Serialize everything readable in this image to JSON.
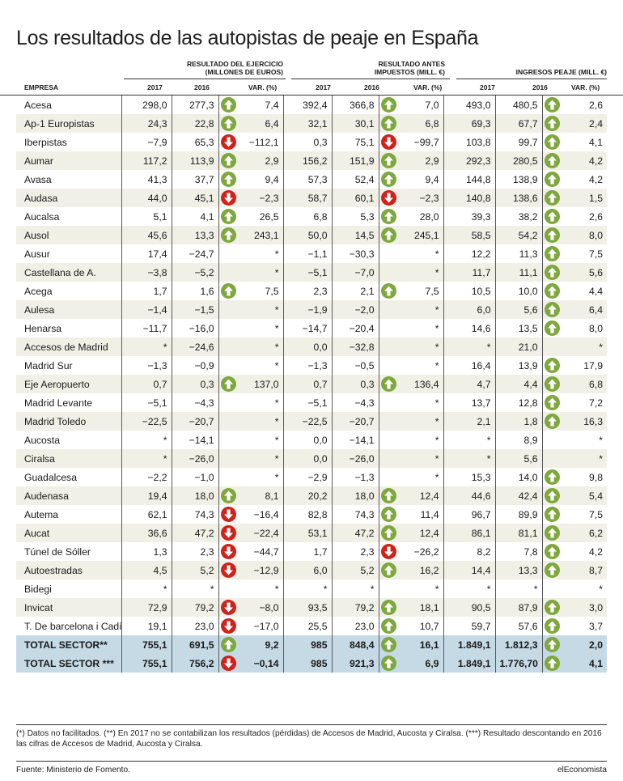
{
  "title": "Los resultados de las autopistas de peaje en España",
  "groups": [
    {
      "l1": "RESULTADO DEL EJERCICIO",
      "l2": "(MILLONES DE EUROS)"
    },
    {
      "l1": "RESULTADO ANTES",
      "l2": "IMPUESTOS (MILL. €)"
    },
    {
      "l1": "",
      "l2": "INGRESOS PEAJE (MILL. €)"
    }
  ],
  "columns": [
    "EMPRESA",
    "2017",
    "2016",
    "VAR. (%)",
    "2017",
    "2016",
    "VAR. (%)",
    "2017",
    "2016",
    "VAR. (%)"
  ],
  "rows": [
    {
      "name": "Acesa",
      "v": [
        "298,0",
        "277,3",
        "7,4",
        "392,4",
        "366,8",
        "7,0",
        "493,0",
        "480,5",
        "2,6"
      ],
      "a": [
        "up",
        "up",
        "up"
      ]
    },
    {
      "name": "Ap-1 Europistas",
      "v": [
        "24,3",
        "22,8",
        "6,4",
        "32,1",
        "30,1",
        "6,8",
        "69,3",
        "67,7",
        "2,4"
      ],
      "a": [
        "up",
        "up",
        "up"
      ]
    },
    {
      "name": "Iberpistas",
      "v": [
        "−7,9",
        "65,3",
        "−112,1",
        "0,3",
        "75,1",
        "−99,7",
        "103,8",
        "99,7",
        "4,1"
      ],
      "a": [
        "down",
        "down",
        "up"
      ]
    },
    {
      "name": "Aumar",
      "v": [
        "117,2",
        "113,9",
        "2,9",
        "156,2",
        "151,9",
        "2,9",
        "292,3",
        "280,5",
        "4,2"
      ],
      "a": [
        "up",
        "up",
        "up"
      ]
    },
    {
      "name": "Avasa",
      "v": [
        "41,3",
        "37,7",
        "9,4",
        "57,3",
        "52,4",
        "9,4",
        "144,8",
        "138,9",
        "4,2"
      ],
      "a": [
        "up",
        "up",
        "up"
      ]
    },
    {
      "name": "Audasa",
      "v": [
        "44,0",
        "45,1",
        "−2,3",
        "58,7",
        "60,1",
        "−2,3",
        "140,8",
        "138,6",
        "1,5"
      ],
      "a": [
        "down",
        "down",
        "up"
      ]
    },
    {
      "name": "Aucalsa",
      "v": [
        "5,1",
        "4,1",
        "26,5",
        "6,8",
        "5,3",
        "28,0",
        "39,3",
        "38,2",
        "2,6"
      ],
      "a": [
        "up",
        "up",
        "up"
      ]
    },
    {
      "name": "Ausol",
      "v": [
        "45,6",
        "13,3",
        "243,1",
        "50,0",
        "14,5",
        "245,1",
        "58,5",
        "54,2",
        "8,0"
      ],
      "a": [
        "up",
        "up",
        "up"
      ]
    },
    {
      "name": "Ausur",
      "v": [
        "17,4",
        "−24,7",
        "*",
        "−1,1",
        "−30,3",
        "*",
        "12,2",
        "11,3",
        "7,5"
      ],
      "a": [
        "",
        "",
        "up"
      ]
    },
    {
      "name": "Castellana de A.",
      "v": [
        "−3,8",
        "−5,2",
        "*",
        "−5,1",
        "−7,0",
        "*",
        "11,7",
        "11,1",
        "5,6"
      ],
      "a": [
        "",
        "",
        "up"
      ]
    },
    {
      "name": "Acega",
      "v": [
        "1,7",
        "1,6",
        "7,5",
        "2,3",
        "2,1",
        "7,5",
        "10,5",
        "10,0",
        "4,4"
      ],
      "a": [
        "up",
        "up",
        "up"
      ]
    },
    {
      "name": "Aulesa",
      "v": [
        "−1,4",
        "−1,5",
        "*",
        "−1,9",
        "−2,0",
        "*",
        "6,0",
        "5,6",
        "6,4"
      ],
      "a": [
        "",
        "",
        "up"
      ]
    },
    {
      "name": "Henarsa",
      "v": [
        "−11,7",
        "−16,0",
        "*",
        "−14,7",
        "−20,4",
        "*",
        "14,6",
        "13,5",
        "8,0"
      ],
      "a": [
        "",
        "",
        "up"
      ]
    },
    {
      "name": "Accesos de Madrid",
      "v": [
        "*",
        "−24,6",
        "*",
        "0,0",
        "−32,8",
        "*",
        "*",
        "21,0",
        "*"
      ],
      "a": [
        "",
        "",
        ""
      ]
    },
    {
      "name": "Madrid Sur",
      "v": [
        "−1,3",
        "−0,9",
        "*",
        "−1,3",
        "−0,5",
        "*",
        "16,4",
        "13,9",
        "17,9"
      ],
      "a": [
        "",
        "",
        "up"
      ]
    },
    {
      "name": "Eje Aeropuerto",
      "v": [
        "0,7",
        "0,3",
        "137,0",
        "0,7",
        "0,3",
        "136,4",
        "4,7",
        "4,4",
        "6,8"
      ],
      "a": [
        "up",
        "up",
        "up"
      ]
    },
    {
      "name": "Madrid Levante",
      "v": [
        "−5,1",
        "−4,3",
        "*",
        "−5,1",
        "−4,3",
        "*",
        "13,7",
        "12,8",
        "7,2"
      ],
      "a": [
        "",
        "",
        "up"
      ]
    },
    {
      "name": "Madrid Toledo",
      "v": [
        "−22,5",
        "−20,7",
        "*",
        "−22,5",
        "−20,7",
        "*",
        "2,1",
        "1,8",
        "16,3"
      ],
      "a": [
        "",
        "",
        "up"
      ]
    },
    {
      "name": "Aucosta",
      "v": [
        "*",
        "−14,1",
        "*",
        "0,0",
        "−14,1",
        "*",
        "*",
        "8,9",
        "*"
      ],
      "a": [
        "",
        "",
        ""
      ]
    },
    {
      "name": "Ciralsa",
      "v": [
        "*",
        "−26,0",
        "*",
        "0,0",
        "−26,0",
        "*",
        "*",
        "5,6",
        "*"
      ],
      "a": [
        "",
        "",
        ""
      ]
    },
    {
      "name": "Guadalcesa",
      "v": [
        "−2,2",
        "−1,0",
        "*",
        "−2,9",
        "−1,3",
        "*",
        "15,3",
        "14,0",
        "9,8"
      ],
      "a": [
        "",
        "",
        "up"
      ]
    },
    {
      "name": "Audenasa",
      "v": [
        "19,4",
        "18,0",
        "8,1",
        "20,2",
        "18,0",
        "12,4",
        "44,6",
        "42,4",
        "5,4"
      ],
      "a": [
        "up",
        "up",
        "up"
      ]
    },
    {
      "name": "Autema",
      "v": [
        "62,1",
        "74,3",
        "−16,4",
        "82,8",
        "74,3",
        "11,4",
        "96,7",
        "89,9",
        "7,5"
      ],
      "a": [
        "down",
        "up",
        "up"
      ]
    },
    {
      "name": "Aucat",
      "v": [
        "36,6",
        "47,2",
        "−22,4",
        "53,1",
        "47,2",
        "12,4",
        "86,1",
        "81,1",
        "6,2"
      ],
      "a": [
        "down",
        "up",
        "up"
      ]
    },
    {
      "name": "Túnel de Sóller",
      "v": [
        "1,3",
        "2,3",
        "−44,7",
        "1,7",
        "2,3",
        "−26,2",
        "8,2",
        "7,8",
        "4,2"
      ],
      "a": [
        "down",
        "down",
        "up"
      ]
    },
    {
      "name": "Autoestradas",
      "v": [
        "4,5",
        "5,2",
        "−12,9",
        "6,0",
        "5,2",
        "16,2",
        "14,4",
        "13,3",
        "8,7"
      ],
      "a": [
        "down",
        "up",
        "up"
      ]
    },
    {
      "name": "Bidegi",
      "v": [
        "*",
        "*",
        "*",
        "*",
        "*",
        "*",
        "*",
        "*",
        "*"
      ],
      "a": [
        "",
        "",
        ""
      ]
    },
    {
      "name": "Invicat",
      "v": [
        "72,9",
        "79,2",
        "−8,0",
        "93,5",
        "79,2",
        "18,1",
        "90,5",
        "87,9",
        "3,0"
      ],
      "a": [
        "down",
        "up",
        "up"
      ]
    },
    {
      "name": "T. De barcelona i Cadí",
      "v": [
        "19,1",
        "23,0",
        "−17,0",
        "25,5",
        "23,0",
        "10,7",
        "59,7",
        "57,6",
        "3,7"
      ],
      "a": [
        "down",
        "up",
        "up"
      ]
    }
  ],
  "totals": [
    {
      "name": "TOTAL SECTOR**",
      "v": [
        "755,1",
        "691,5",
        "9,2",
        "985",
        "848,4",
        "16,1",
        "1.849,1",
        "1.812,3",
        "2,0"
      ],
      "a": [
        "up",
        "up",
        "up"
      ]
    },
    {
      "name": "TOTAL SECTOR ***",
      "v": [
        "755,1",
        "756,2",
        "−0,14",
        "985",
        "921,3",
        "6,9",
        "1.849,1",
        "1.776,70",
        "4,1"
      ],
      "a": [
        "down",
        "up",
        "up"
      ]
    }
  ],
  "note": "(*) Datos no facilitados. (**) En 2017 no se contabilizan los resultados (pérdidas) de Accesos de Madrid, Aucosta y Ciralsa. (***) Resultado descontando en 2016 las cifras de Accesos de Madrid, Aucosta y Ciralsa.",
  "source": "Fuente: Ministerio de Fomento.",
  "brand": "elEconomista",
  "colors": {
    "up": "#7ea83e",
    "down": "#d0221b",
    "row_shade": "#f0f0e6",
    "total": "#c6dae6"
  }
}
